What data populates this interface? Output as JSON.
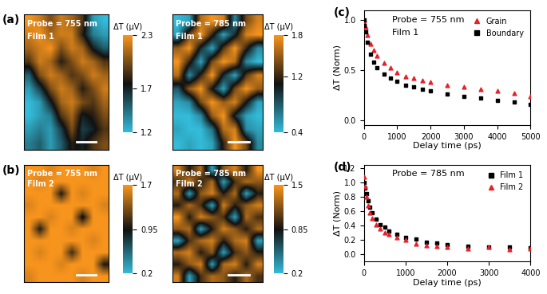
{
  "chart_data": [
    {
      "type": "heatmap",
      "label": "(a)",
      "annotations": [
        "Probe = 755 nm",
        "Film 1"
      ],
      "tick_labels": false,
      "cells": [
        [
          2.3,
          2.2,
          2.0,
          2.2,
          2.1,
          1.9,
          1.3,
          1.2
        ],
        [
          2.2,
          2.3,
          2.1,
          2.2,
          2.2,
          1.8,
          1.4,
          1.3
        ],
        [
          2.1,
          2.2,
          2.3,
          2.0,
          2.2,
          2.1,
          1.7,
          1.5
        ],
        [
          1.9,
          2.2,
          2.1,
          1.8,
          2.0,
          2.2,
          2.1,
          1.9
        ],
        [
          1.5,
          2.0,
          2.2,
          2.1,
          1.9,
          2.0,
          2.2,
          2.1
        ],
        [
          1.3,
          1.6,
          2.0,
          2.2,
          2.1,
          1.8,
          2.0,
          2.2
        ],
        [
          1.2,
          1.3,
          1.7,
          2.1,
          2.2,
          2.0,
          1.9,
          2.1
        ],
        [
          1.2,
          1.3,
          1.4,
          1.9,
          2.1,
          1.7,
          1.8,
          2.0
        ],
        [
          1.3,
          1.4,
          1.3,
          1.6,
          2.0,
          1.6,
          1.7,
          1.9
        ],
        [
          1.4,
          1.5,
          1.3,
          1.5,
          1.8,
          1.7,
          1.9,
          2.0
        ]
      ],
      "colorbar": {
        "label": "ΔT (μV)",
        "range": [
          1.2,
          2.3
        ],
        "ticks": [
          1.2,
          1.7,
          2.3
        ]
      }
    },
    {
      "type": "heatmap",
      "annotations": [
        "Probe = 785 nm",
        "Film 1"
      ],
      "tick_labels": false,
      "cells": [
        [
          0.4,
          0.5,
          1.6,
          1.8,
          1.7,
          0.6,
          1.4,
          1.7
        ],
        [
          0.5,
          1.4,
          1.8,
          1.2,
          0.5,
          1.0,
          1.7,
          1.8
        ],
        [
          1.5,
          1.8,
          1.0,
          0.5,
          1.3,
          1.8,
          1.2,
          0.6
        ],
        [
          1.8,
          1.2,
          0.5,
          1.4,
          1.8,
          1.6,
          0.6,
          0.4
        ],
        [
          1.6,
          0.6,
          1.2,
          1.8,
          1.0,
          0.5,
          1.3,
          1.7
        ],
        [
          0.8,
          1.5,
          1.8,
          1.1,
          0.5,
          1.4,
          1.8,
          1.5
        ],
        [
          0.5,
          0.6,
          1.4,
          1.8,
          1.5,
          1.7,
          1.1,
          0.5
        ],
        [
          0.4,
          0.4,
          0.6,
          1.5,
          1.8,
          1.0,
          0.5,
          0.4
        ],
        [
          0.5,
          0.4,
          0.4,
          0.7,
          1.6,
          1.7,
          0.6,
          0.5
        ],
        [
          0.4,
          0.5,
          0.4,
          0.5,
          1.2,
          1.8,
          1.4,
          0.6
        ]
      ],
      "colorbar": {
        "label": "ΔT (μV)",
        "range": [
          0.4,
          1.8
        ],
        "ticks": [
          0.4,
          1.2,
          1.8
        ]
      }
    },
    {
      "type": "heatmap",
      "label": "(b)",
      "annotations": [
        "Probe = 755 nm",
        "Film 2"
      ],
      "tick_labels": false,
      "cells": [
        [
          1.7,
          1.7,
          1.6,
          1.7,
          1.7,
          1.7,
          1.6,
          1.7
        ],
        [
          1.7,
          1.6,
          1.7,
          1.7,
          1.7,
          1.7,
          1.7,
          1.7
        ],
        [
          1.7,
          1.7,
          1.7,
          1.0,
          1.7,
          1.6,
          1.7,
          1.7
        ],
        [
          1.6,
          1.7,
          1.7,
          1.7,
          1.7,
          1.7,
          1.7,
          1.6
        ],
        [
          1.7,
          1.7,
          1.6,
          1.7,
          1.7,
          0.9,
          1.7,
          1.7
        ],
        [
          1.7,
          1.0,
          1.7,
          1.7,
          1.6,
          1.7,
          1.7,
          1.7
        ],
        [
          1.7,
          1.7,
          1.7,
          1.7,
          1.7,
          1.7,
          1.6,
          1.7
        ],
        [
          1.7,
          1.6,
          1.7,
          1.7,
          1.1,
          1.7,
          1.7,
          1.7
        ],
        [
          1.7,
          1.7,
          1.7,
          1.6,
          1.7,
          1.7,
          1.7,
          1.0
        ],
        [
          1.6,
          1.7,
          1.7,
          1.7,
          1.7,
          1.6,
          1.7,
          1.7
        ]
      ],
      "colorbar": {
        "label": "ΔT (μV)",
        "range": [
          0.2,
          1.7
        ],
        "ticks": [
          0.2,
          0.95,
          1.7
        ]
      }
    },
    {
      "type": "heatmap",
      "annotations": [
        "Probe = 785 nm",
        "Film 2"
      ],
      "tick_labels": false,
      "cells": [
        [
          1.4,
          0.9,
          1.3,
          0.3,
          1.2,
          1.4,
          0.9,
          1.5
        ],
        [
          1.0,
          1.4,
          0.9,
          1.3,
          0.3,
          1.0,
          1.3,
          1.2
        ],
        [
          1.3,
          0.3,
          1.2,
          1.4,
          0.9,
          1.3,
          0.3,
          0.9
        ],
        [
          0.9,
          1.3,
          1.0,
          0.3,
          1.4,
          0.9,
          1.2,
          1.4
        ],
        [
          1.5,
          0.9,
          1.4,
          1.2,
          1.0,
          0.3,
          1.3,
          1.0
        ],
        [
          1.2,
          1.3,
          0.3,
          0.9,
          1.4,
          1.2,
          0.9,
          1.3
        ],
        [
          0.3,
          1.0,
          1.3,
          1.4,
          0.9,
          1.3,
          1.4,
          0.3
        ],
        [
          1.3,
          1.4,
          0.9,
          1.2,
          0.3,
          1.0,
          1.2,
          0.9
        ],
        [
          0.9,
          1.2,
          1.4,
          0.3,
          1.3,
          1.4,
          0.9,
          1.4
        ],
        [
          1.4,
          0.3,
          1.0,
          1.3,
          1.2,
          0.9,
          1.3,
          1.0
        ]
      ],
      "colorbar": {
        "label": "ΔT (μV)",
        "range": [
          0.2,
          1.5
        ],
        "ticks": [
          0.2,
          0.85,
          1.5
        ]
      }
    },
    {
      "type": "scatter",
      "label": "(c)",
      "annotations": [
        "Probe = 755 nm",
        "Film 1"
      ],
      "x_label": "Delay time (ps)",
      "y_label": "ΔT (Norm)",
      "legend": "upper right",
      "xlim": [
        0,
        5000
      ],
      "xticks": [
        0,
        1000,
        2000,
        3000,
        4000,
        5000
      ],
      "ylim": [
        -0.05,
        1.1
      ],
      "yticks": [
        {
          "value": 0,
          "label": "0.0"
        },
        {
          "value": 0.5,
          "label": "0.5"
        },
        {
          "value": 1.0,
          "label": "1.0"
        }
      ],
      "x": [
        10,
        20,
        50,
        100,
        200,
        300,
        400,
        600,
        800,
        1000,
        1250,
        1500,
        1750,
        2000,
        2500,
        3000,
        3500,
        4000,
        4500,
        5000
      ],
      "series": [
        {
          "name": "Grain",
          "color": "#e8202a",
          "marker": "triangle",
          "values": [
            1.0,
            0.98,
            0.93,
            0.85,
            0.76,
            0.7,
            0.64,
            0.57,
            0.52,
            0.48,
            0.44,
            0.42,
            0.4,
            0.38,
            0.35,
            0.33,
            0.31,
            0.29,
            0.27,
            0.24
          ]
        },
        {
          "name": "Boundary",
          "color": "#000000",
          "marker": "square",
          "values": [
            1.0,
            0.95,
            0.88,
            0.78,
            0.66,
            0.58,
            0.52,
            0.46,
            0.42,
            0.39,
            0.35,
            0.33,
            0.31,
            0.29,
            0.26,
            0.24,
            0.22,
            0.2,
            0.18,
            0.16
          ]
        }
      ]
    },
    {
      "type": "scatter",
      "label": "(d)",
      "annotations": [
        "Probe = 785 nm"
      ],
      "x_label": "Delay time (ps)",
      "y_label": "ΔT (Norm)",
      "legend": "upper right",
      "xlim": [
        0,
        4000
      ],
      "xticks": [
        0,
        1000,
        2000,
        3000,
        4000
      ],
      "ylim": [
        -0.1,
        1.25
      ],
      "yticks": [
        {
          "value": 0,
          "label": "0.0"
        },
        {
          "value": 0.2,
          "label": "0.2"
        },
        {
          "value": 0.4,
          "label": "0.4"
        },
        {
          "value": 0.6,
          "label": "0.6"
        },
        {
          "value": 0.8,
          "label": "0.8"
        },
        {
          "value": 1.0,
          "label": "1.0"
        },
        {
          "value": 1.2,
          "label": "1.2"
        }
      ],
      "x": [
        10,
        30,
        60,
        100,
        150,
        200,
        300,
        400,
        500,
        600,
        800,
        1000,
        1250,
        1500,
        1750,
        2000,
        2500,
        3000,
        3500,
        4000
      ],
      "series": [
        {
          "name": "Film 1",
          "color": "#000000",
          "marker": "square",
          "values": [
            1.0,
            0.93,
            0.85,
            0.75,
            0.66,
            0.58,
            0.49,
            0.42,
            0.38,
            0.33,
            0.28,
            0.24,
            0.22,
            0.17,
            0.16,
            0.14,
            0.12,
            0.1,
            0.1,
            0.09
          ]
        },
        {
          "name": "Film 2",
          "color": "#e8202a",
          "marker": "triangle",
          "values": [
            1.08,
            0.95,
            0.8,
            0.68,
            0.58,
            0.5,
            0.42,
            0.36,
            0.3,
            0.28,
            0.24,
            0.2,
            0.15,
            0.13,
            0.12,
            0.1,
            0.08,
            0.1,
            0.07,
            0.08
          ]
        }
      ]
    }
  ]
}
